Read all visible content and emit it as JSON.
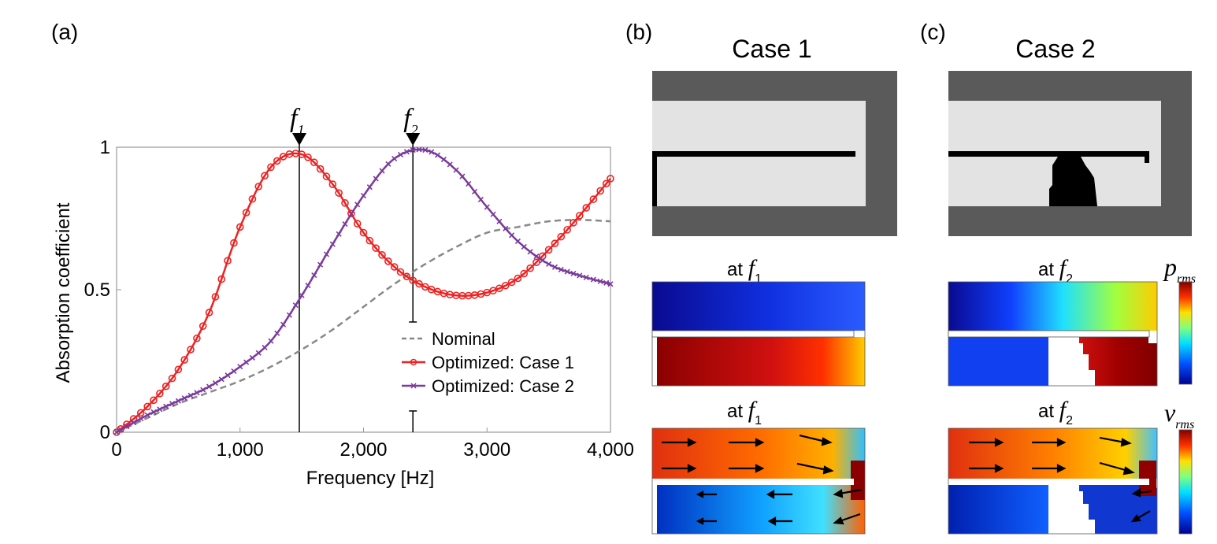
{
  "panels": {
    "a": {
      "label": "(a)"
    },
    "b": {
      "label": "(b)",
      "title": "Case 1",
      "pressure_caption": "at ",
      "velocity_caption": "at ",
      "freq_symbol": "f",
      "freq_sub": "1"
    },
    "c": {
      "label": "(c)",
      "title": "Case 2",
      "pressure_caption": "at ",
      "velocity_caption": "at ",
      "freq_symbol": "f",
      "freq_sub": "2"
    }
  },
  "colorbars": {
    "pressure": {
      "symbol": "p",
      "sub": "rms"
    },
    "velocity": {
      "symbol": "v",
      "sub": "rms"
    }
  },
  "markers": {
    "f1": {
      "symbol": "f",
      "sub": "1",
      "x": 1480
    },
    "f2": {
      "symbol": "f",
      "sub": "2",
      "x": 2400
    }
  },
  "chart_data": {
    "type": "line",
    "xlabel": "Frequency [Hz]",
    "ylabel": "Absorption coefficient",
    "xlim": [
      0,
      4000
    ],
    "ylim": [
      0,
      1
    ],
    "x_ticks": [
      "0",
      "1,000",
      "2,000",
      "3,000",
      "4,000"
    ],
    "y_ticks": [
      "0",
      "0.5",
      "1"
    ],
    "grid": false,
    "legend_position": "bottom-right",
    "series": [
      {
        "name": "Nominal",
        "color": "#888888",
        "style": "dashed",
        "x": [
          0,
          250,
          500,
          750,
          1000,
          1250,
          1500,
          1750,
          2000,
          2250,
          2500,
          2750,
          3000,
          3250,
          3500,
          3750,
          4000
        ],
        "y": [
          0,
          0.05,
          0.1,
          0.14,
          0.18,
          0.23,
          0.29,
          0.36,
          0.44,
          0.52,
          0.59,
          0.65,
          0.7,
          0.72,
          0.74,
          0.745,
          0.74
        ]
      },
      {
        "name": "Optimized: Case 1",
        "color": "#ee2222",
        "style": "solid-circle",
        "x": [
          0,
          250,
          500,
          750,
          1000,
          1250,
          1500,
          1750,
          2000,
          2250,
          2500,
          2750,
          3000,
          3250,
          3500,
          3750,
          4000
        ],
        "y": [
          0,
          0.09,
          0.22,
          0.42,
          0.72,
          0.93,
          0.975,
          0.87,
          0.7,
          0.58,
          0.51,
          0.48,
          0.49,
          0.54,
          0.64,
          0.76,
          0.89
        ]
      },
      {
        "name": "Optimized: Case 2",
        "color": "#7a3b9b",
        "style": "solid-x",
        "x": [
          0,
          250,
          500,
          750,
          1000,
          1250,
          1500,
          1750,
          2000,
          2250,
          2500,
          2750,
          3000,
          3250,
          3500,
          3750,
          4000
        ],
        "y": [
          0,
          0.06,
          0.11,
          0.16,
          0.23,
          0.32,
          0.48,
          0.66,
          0.83,
          0.96,
          0.99,
          0.92,
          0.79,
          0.67,
          0.59,
          0.55,
          0.52
        ]
      }
    ]
  }
}
